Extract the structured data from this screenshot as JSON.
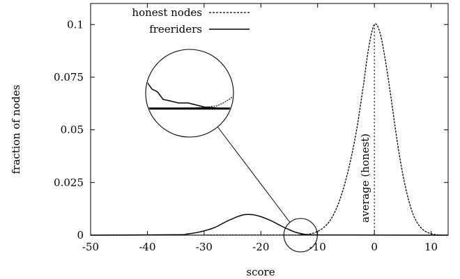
{
  "chart_data": {
    "type": "line",
    "xlabel": "score",
    "ylabel": "fraction of nodes",
    "xlim": [
      -50,
      13
    ],
    "ylim": [
      0,
      0.11
    ],
    "x_ticks": [
      -50,
      -40,
      -30,
      -20,
      -10,
      0,
      10
    ],
    "x_tick_labels": [
      "-50",
      "-40",
      "-30",
      "-20",
      "-10",
      "0",
      "10"
    ],
    "y_ticks": [
      0,
      0.025,
      0.05,
      0.075,
      0.1
    ],
    "y_tick_labels": [
      "0",
      "0.025",
      "0.05",
      "0.075",
      "0.1"
    ],
    "grid": false,
    "legend_position": "top",
    "series": [
      {
        "name": "honest nodes",
        "style": "dashed",
        "color": "#000000",
        "x": [
          -13,
          -12,
          -11,
          -10,
          -9,
          -8,
          -7,
          -6,
          -5,
          -4,
          -3,
          -2,
          -1,
          0,
          1,
          2,
          3,
          4,
          5,
          6,
          7,
          8,
          9,
          10,
          11,
          12
        ],
        "y": [
          0.0001,
          0.0003,
          0.0008,
          0.0018,
          0.0035,
          0.0062,
          0.0108,
          0.0175,
          0.0265,
          0.038,
          0.052,
          0.07,
          0.089,
          0.1,
          0.096,
          0.082,
          0.064,
          0.045,
          0.029,
          0.017,
          0.0088,
          0.0042,
          0.0018,
          0.0007,
          0.0002,
          0.0
        ]
      },
      {
        "name": "freeriders",
        "style": "solid",
        "color": "#000000",
        "x": [
          -35,
          -33,
          -31,
          -29,
          -28,
          -27,
          -26,
          -25,
          -24,
          -23,
          -22,
          -21,
          -20,
          -19,
          -18,
          -17,
          -16,
          -15,
          -14,
          -13,
          -12,
          -11
        ],
        "y": [
          0.0002,
          0.0006,
          0.0014,
          0.0028,
          0.0038,
          0.0052,
          0.0066,
          0.0078,
          0.0089,
          0.0097,
          0.0098,
          0.0095,
          0.0088,
          0.0078,
          0.0066,
          0.0052,
          0.0038,
          0.0026,
          0.0015,
          0.0008,
          0.0003,
          0.0001
        ]
      }
    ],
    "annotations": [
      {
        "type": "vertical_line",
        "x": 0,
        "style": "dotted",
        "label": "average (honest)"
      },
      {
        "type": "zoom_circle",
        "center_x": -13,
        "center_y": 0
      }
    ]
  }
}
